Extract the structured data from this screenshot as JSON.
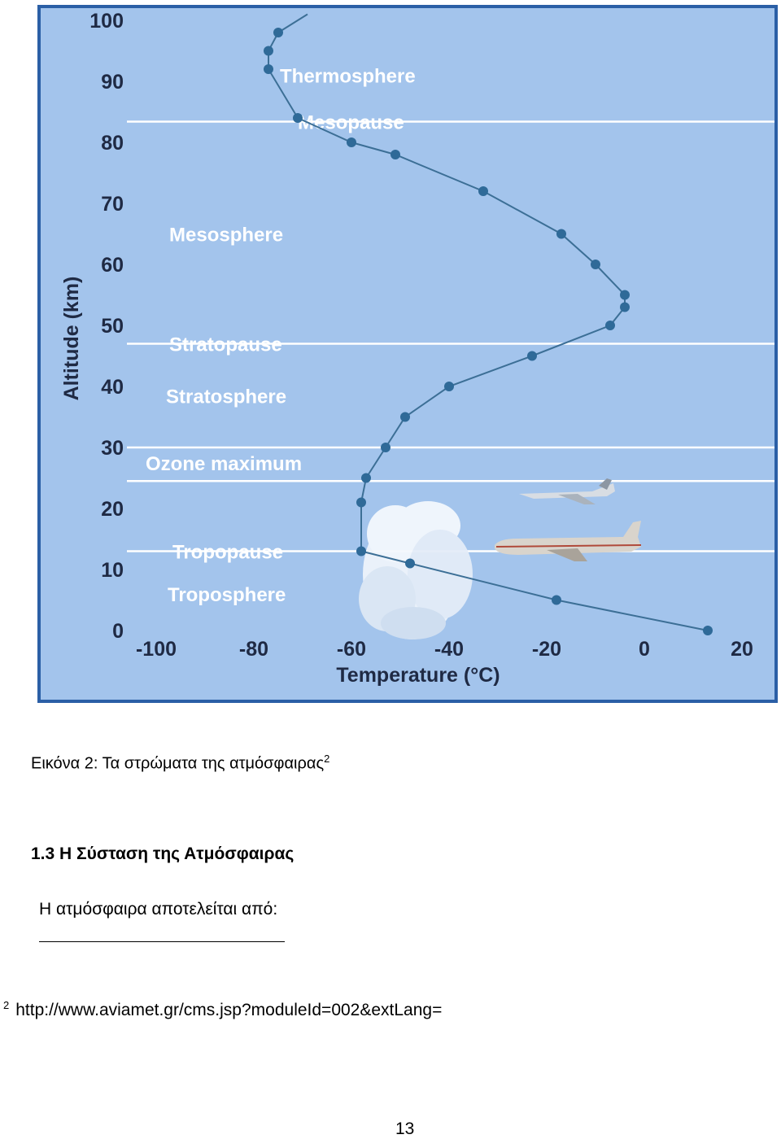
{
  "figure": {
    "chart_data": {
      "type": "line",
      "xlabel": "Temperature (°C)",
      "ylabel": "Altitude (km)",
      "xlim": [
        -100,
        20
      ],
      "ylim": [
        0,
        100
      ],
      "x_ticks": [
        "-100",
        "-80",
        "-60",
        "-40",
        "-20",
        "0",
        "20"
      ],
      "y_ticks": [
        "0",
        "10",
        "20",
        "30",
        "40",
        "50",
        "60",
        "70",
        "80",
        "90",
        "100"
      ],
      "series": [
        {
          "x": [
            13,
            -18,
            -48,
            -58,
            -58,
            -57,
            -53,
            -49,
            -40,
            -23,
            -7,
            -4,
            -4,
            -10,
            -17,
            -33,
            -51,
            -60,
            -71,
            -77,
            -77,
            -75,
            -69
          ],
          "y": [
            0,
            5,
            11,
            13,
            21,
            25,
            30,
            35,
            40,
            45,
            50,
            53,
            55,
            60,
            65,
            72,
            78,
            80,
            84,
            92,
            95,
            98,
            101
          ]
        }
      ],
      "layers": [
        {
          "label": "Thermosphere",
          "y": 91
        },
        {
          "label": "Mesopause",
          "y": 83.4
        },
        {
          "label": "Mesosphere",
          "y": 65
        },
        {
          "label": "Stratopause",
          "y": 47
        },
        {
          "label": "Stratosphere",
          "y": 38.5
        },
        {
          "label": "Ozone maximum",
          "y": 27.5
        },
        {
          "label": "Tropopause",
          "y": 13
        },
        {
          "label": "Troposphere",
          "y": 6
        }
      ],
      "boundary_lines": [
        83.4,
        47,
        30,
        24.5,
        13
      ],
      "grid": false,
      "colors": {
        "plot_background": "#a3c4ec",
        "frame": "#2b5fa6",
        "line": "#3c6f96",
        "markers": "#2f6a98",
        "boundary": "#ffffff"
      }
    }
  },
  "caption": {
    "text": "Εικόνα 2: Τα στρώματα της ατμόσφαιρας",
    "sup": "2"
  },
  "section_heading": "1.3 Η Σύσταση της Ατμόσφαιρας",
  "body_text": "Η ατμόσφαιρα αποτελείται από:",
  "footnote": {
    "sup": "2",
    "text": "http://www.aviamet.gr/cms.jsp?moduleId=002&extLang="
  },
  "page_number": "13"
}
